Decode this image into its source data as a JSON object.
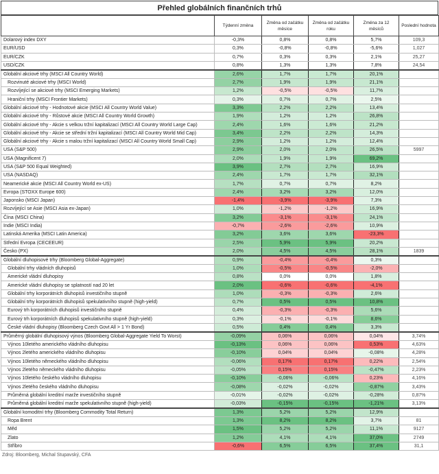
{
  "title": "Přehled globálních finančních trhů",
  "headers": [
    "",
    "Týdenní změna",
    "Změna od začátku měsíce",
    "Změna od začátku roku",
    "Změna za 12 měsíců",
    "Poslední hodnota"
  ],
  "colors": {
    "green": "#63be7b",
    "red": "#f8696b",
    "white": "#ffffff"
  },
  "sections": [
    {
      "scale": "none",
      "rows": [
        [
          "Dolarový index DXY",
          "-0,3%",
          "0,8%",
          "0,8%",
          "5,7%",
          "109,3",
          0
        ],
        [
          "EUR/USD",
          "0,3%",
          "-0,8%",
          "-0,8%",
          "-5,6%",
          "1,027",
          0
        ],
        [
          "EUR/CZK",
          "0,7%",
          "0,3%",
          "0,3%",
          "2,1%",
          "25,27",
          0
        ],
        [
          "USD/CZK",
          "0,8%",
          "1,3%",
          "1,3%",
          "7,8%",
          "24,54",
          0
        ]
      ]
    },
    {
      "scale": "normal",
      "rows": [
        [
          "Globální akciové trhy (MSCI All Country World)",
          "2,6%",
          "1,7%",
          "1,7%",
          "20,1%",
          "",
          0
        ],
        [
          "Rozvinuté akciové trhy (MSCI World)",
          "2,7%",
          "1,9%",
          "1,9%",
          "21,1%",
          "",
          1
        ],
        [
          "Rozvíjející se akciové trhy (MSCI Emerging Markets)",
          "1,2%",
          "-0,5%",
          "-0,5%",
          "11,7%",
          "",
          1
        ],
        [
          "Hraniční trhy (MSCI Frontier Markets)",
          "0,3%",
          "0,7%",
          "0,7%",
          "2,5%",
          "",
          1
        ],
        [
          "Globální akciové trhy - Hodnotové akcie (MSCI All Country World Value)",
          "3,3%",
          "2,2%",
          "2,2%",
          "13,4%",
          "",
          0
        ],
        [
          "Globální akciové trhy - Růstové akcie (MSCI All Country World Growth)",
          "1,9%",
          "1,2%",
          "1,2%",
          "26,8%",
          "",
          0
        ],
        [
          "Globální akciové trhy - Akcie s velkou tržní kapitalizací (MSCI All Country World Large Cap)",
          "2,4%",
          "1,6%",
          "1,6%",
          "21,2%",
          "",
          0
        ],
        [
          "Globální akciové trhy - Akcie se střední tržní kapitalizací (MSCI All Country World Mid Cap)",
          "3,4%",
          "2,2%",
          "2,2%",
          "14,3%",
          "",
          0
        ],
        [
          "Globální akciové trhy - Akcie s malou tržní kapitalizací (MSCI All Country World Small Cap)",
          "2,9%",
          "1,2%",
          "1,2%",
          "12,4%",
          "",
          0
        ],
        [
          "USA (S&P 500)",
          "2,9%",
          "2,0%",
          "2,0%",
          "26,5%",
          "5997",
          0
        ],
        [
          "USA (Magnificent 7)",
          "2,0%",
          "1,9%",
          "1,9%",
          "69,2%",
          "",
          0
        ],
        [
          "USA (S&P 500 Equal Weighted)",
          "3,9%",
          "2,7%",
          "2,7%",
          "16,9%",
          "",
          0
        ],
        [
          "USA (NASDAQ)",
          "2,4%",
          "1,7%",
          "1,7%",
          "32,1%",
          "",
          0
        ],
        [
          "Neamerické akcie (MSCI All Country World ex-US)",
          "1,7%",
          "0,7%",
          "0,7%",
          "8,2%",
          "",
          0
        ],
        [
          "Evropa (STOXX Europe 600)",
          "2,4%",
          "3,2%",
          "3,2%",
          "12,0%",
          "",
          0
        ],
        [
          "Japonsko (MSCI Japan)",
          "-1,4%",
          "-3,9%",
          "-3,9%",
          "7,3%",
          "",
          0
        ],
        [
          "Rozvíjející se Asie (MSCI Asia ex-Japan)",
          "1,0%",
          "-1,2%",
          "-1,2%",
          "16,9%",
          "",
          0
        ],
        [
          "Čína (MSCI China)",
          "3,2%",
          "-3,1%",
          "-3,1%",
          "24,1%",
          "",
          0
        ],
        [
          "Indie (MSCI India)",
          "-0,7%",
          "-2,6%",
          "-2,6%",
          "10,9%",
          "",
          0
        ],
        [
          "Latinská Amerika (MSCI Latin America)",
          "3,2%",
          "3,6%",
          "3,6%",
          "-23,3%",
          "",
          0
        ],
        [
          "Střední Evropa (CECEEUR)",
          "2,5%",
          "5,9%",
          "5,9%",
          "20,2%",
          "",
          0
        ],
        [
          "Česko (PX)",
          "2,0%",
          "4,5%",
          "4,5%",
          "28,1%",
          "1839",
          0
        ]
      ]
    },
    {
      "scale": "normal",
      "rows": [
        [
          "Globální dluhopisové trhy (Bloomberg Global-Aggregate)",
          "0,9%",
          "-0,4%",
          "-0,4%",
          "0,3%",
          "",
          0
        ],
        [
          "Globální trhy vládních dluhopisů",
          "1,0%",
          "-0,5%",
          "-0,5%",
          "-2,0%",
          "",
          1
        ],
        [
          "Americké vládní dluhopisy",
          "0,8%",
          "0,0%",
          "0,0%",
          "1,8%",
          "",
          1
        ],
        [
          "Americké vládní dluhopisy se splatností nad 20 let",
          "2,0%",
          "-0,6%",
          "-0,6%",
          "-4,1%",
          "",
          1
        ],
        [
          "Globální trhy korporátních dluhopisů investičního stupně",
          "1,0%",
          "-0,3%",
          "-0,3%",
          "2,6%",
          "",
          1
        ],
        [
          "Globální trhy korporátních dluhopisů spekulativního stupně (high-yield)",
          "0,7%",
          "0,5%",
          "0,5%",
          "10,8%",
          "",
          1
        ],
        [
          "Eurový trh korporátních dluhopisů investičního stupně",
          "0,4%",
          "-0,3%",
          "-0,3%",
          "5,6%",
          "",
          1
        ],
        [
          "Eurový trh korporátních dluhopisů spekulativního stupně (high-yield)",
          "0,3%",
          "-0,1%",
          "-0,1%",
          "8,6%",
          "",
          1
        ],
        [
          "České vládní dluhopisy (Bloomberg Czech Govt All > 1 Yr Bond)",
          "0,5%",
          "0,4%",
          "0,4%",
          "3,3%",
          "",
          1
        ]
      ]
    },
    {
      "scale": "reverse",
      "rows": [
        [
          "Průměrný globální dluhopisový výnos (Bloomberg Global-Aggregate Yield To Worst)",
          "-0,09%",
          "0,06%",
          "0,06%",
          "0,04%",
          "3,74%",
          0
        ],
        [
          "Výnos 10letého amerického vládního dluhopisu",
          "-0,13%",
          "0,06%",
          "0,06%",
          "0,53%",
          "4,63%",
          1
        ],
        [
          "Výnos 2letého amerického vládního dluhopisu",
          "-0,10%",
          "0,04%",
          "0,04%",
          "-0,08%",
          "4,28%",
          1
        ],
        [
          "Výnos 10letého německého vládního dluhopisu",
          "-0,06%",
          "0,17%",
          "0,17%",
          "0,22%",
          "2,54%",
          1
        ],
        [
          "Výnos 2letého německého vládního dluhopisu",
          "-0,05%",
          "0,15%",
          "0,15%",
          "-0,47%",
          "2,23%",
          1
        ],
        [
          "Výnos 10letého českého vládního dluhopisu",
          "-0,10%",
          "-0,06%",
          "-0,06%",
          "0,23%",
          "4,16%",
          1
        ],
        [
          "Výnos 2letého českého vládního dluhopisu",
          "-0,08%",
          "-0,02%",
          "-0,02%",
          "-0,87%",
          "3,43%",
          1
        ],
        [
          "Průměrná globální kreditní marže investičního stupně",
          "-0,01%",
          "-0,02%",
          "-0,02%",
          "-0,28%",
          "0,87%",
          1
        ],
        [
          "Průměrná globální kreditní marže spekulativního stupně (high-yield)",
          "-0,03%",
          "-0,15%",
          "-0,15%",
          "-1,21%",
          "3,13%",
          1
        ]
      ]
    },
    {
      "scale": "normal",
      "rows": [
        [
          "Globální komoditní trhy (Bloomberg Commodity Total Return)",
          "1,3%",
          "5,2%",
          "5,2%",
          "12,9%",
          "",
          0
        ],
        [
          "Ropa Brent",
          "1,3%",
          "8,2%",
          "8,2%",
          "3,7%",
          "81",
          1
        ],
        [
          "Měd",
          "1,5%",
          "5,2%",
          "5,2%",
          "11,1%",
          "9127",
          1
        ],
        [
          "Zlato",
          "1,2%",
          "4,1%",
          "4,1%",
          "37,0%",
          "2749",
          1
        ],
        [
          "Stříbro",
          "-0,6%",
          "6,5%",
          "6,5%",
          "37,4%",
          "31,1",
          1
        ]
      ]
    }
  ],
  "footer": "Zdroj: Bloomberg, Michal Stupavský, CFA"
}
